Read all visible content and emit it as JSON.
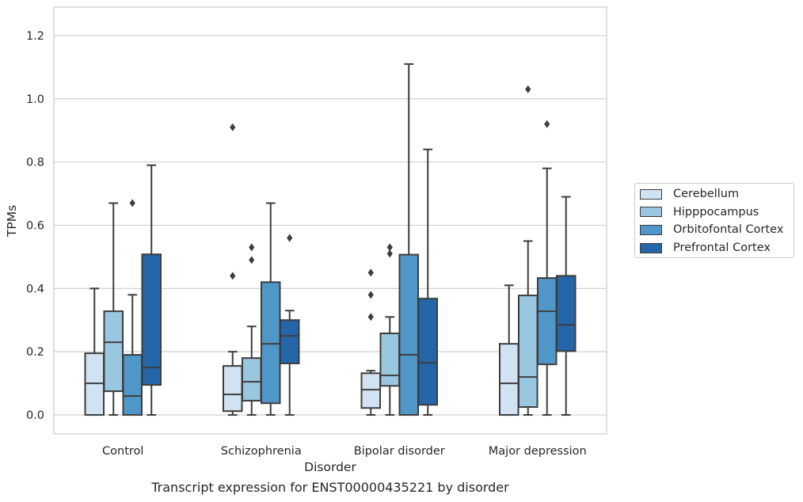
{
  "chart_data": {
    "type": "box",
    "caption": "Transcript expression for ENST00000435221 by disorder",
    "xlabel": "Disorder",
    "ylabel": "TPMs",
    "ylim": [
      -0.06,
      1.29
    ],
    "yticks": [
      "0.0",
      "0.2",
      "0.4",
      "0.6",
      "0.8",
      "1.0",
      "1.2"
    ],
    "grid": true,
    "legend_position": "right",
    "categories": [
      "Control",
      "Schizophrenia",
      "Bipolar disorder",
      "Major depression"
    ],
    "series": [
      {
        "name": "Cerebellum",
        "color": "#d1e2f2",
        "boxes": [
          {
            "whisker_low": 0.0,
            "q1": 0.0,
            "median": 0.1,
            "q3": 0.195,
            "whisker_high": 0.4,
            "outliers": []
          },
          {
            "whisker_low": 0.0,
            "q1": 0.012,
            "median": 0.065,
            "q3": 0.155,
            "whisker_high": 0.2,
            "outliers": [
              0.44,
              0.91
            ]
          },
          {
            "whisker_low": 0.0,
            "q1": 0.022,
            "median": 0.08,
            "q3": 0.132,
            "whisker_high": 0.14,
            "outliers": [
              0.31,
              0.38,
              0.45
            ]
          },
          {
            "whisker_low": 0.0,
            "q1": 0.0,
            "median": 0.1,
            "q3": 0.225,
            "whisker_high": 0.41,
            "outliers": []
          }
        ]
      },
      {
        "name": "Hipppocampus",
        "color": "#9ac7e0",
        "boxes": [
          {
            "whisker_low": 0.0,
            "q1": 0.075,
            "median": 0.23,
            "q3": 0.328,
            "whisker_high": 0.67,
            "outliers": []
          },
          {
            "whisker_low": 0.0,
            "q1": 0.045,
            "median": 0.105,
            "q3": 0.18,
            "whisker_high": 0.28,
            "outliers": [
              0.49,
              0.53
            ]
          },
          {
            "whisker_low": 0.0,
            "q1": 0.092,
            "median": 0.125,
            "q3": 0.258,
            "whisker_high": 0.31,
            "outliers": [
              0.51,
              0.53
            ]
          },
          {
            "whisker_low": 0.0,
            "q1": 0.025,
            "median": 0.12,
            "q3": 0.378,
            "whisker_high": 0.55,
            "outliers": [
              1.03
            ]
          }
        ]
      },
      {
        "name": "Orbitofontal Cortex",
        "color": "#5097c9",
        "boxes": [
          {
            "whisker_low": 0.0,
            "q1": 0.0,
            "median": 0.06,
            "q3": 0.19,
            "whisker_high": 0.38,
            "outliers": [
              0.67
            ]
          },
          {
            "whisker_low": 0.0,
            "q1": 0.037,
            "median": 0.225,
            "q3": 0.42,
            "whisker_high": 0.67,
            "outliers": []
          },
          {
            "whisker_low": 0.0,
            "q1": 0.0,
            "median": 0.19,
            "q3": 0.507,
            "whisker_high": 1.11,
            "outliers": []
          },
          {
            "whisker_low": 0.0,
            "q1": 0.16,
            "median": 0.328,
            "q3": 0.433,
            "whisker_high": 0.78,
            "outliers": [
              0.92
            ]
          }
        ]
      },
      {
        "name": "Prefrontal Cortex",
        "color": "#2466a8",
        "boxes": [
          {
            "whisker_low": 0.0,
            "q1": 0.095,
            "median": 0.15,
            "q3": 0.508,
            "whisker_high": 0.79,
            "outliers": []
          },
          {
            "whisker_low": 0.0,
            "q1": 0.163,
            "median": 0.25,
            "q3": 0.3,
            "whisker_high": 0.33,
            "outliers": [
              0.56
            ]
          },
          {
            "whisker_low": 0.0,
            "q1": 0.032,
            "median": 0.165,
            "q3": 0.368,
            "whisker_high": 0.84,
            "outliers": []
          },
          {
            "whisker_low": 0.0,
            "q1": 0.202,
            "median": 0.285,
            "q3": 0.44,
            "whisker_high": 0.69,
            "outliers": []
          }
        ]
      }
    ]
  }
}
